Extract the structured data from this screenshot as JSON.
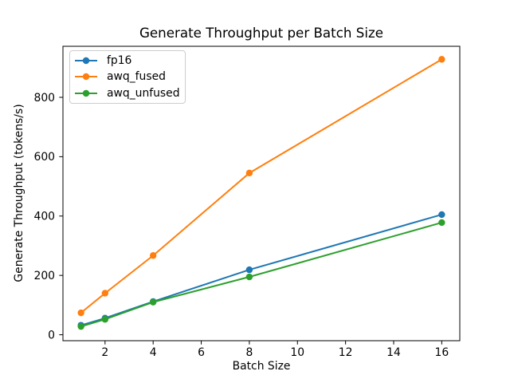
{
  "figure": {
    "background_color": "#ffffff",
    "spine_color": "#000000",
    "legend_border_color": "#cccccc"
  },
  "chart_data": {
    "type": "line",
    "title": "Generate Throughput per Batch Size",
    "xlabel": "Batch Size",
    "ylabel": "Generate Throughput (tokens/s)",
    "x": [
      1,
      2,
      4,
      8,
      16
    ],
    "series": [
      {
        "name": "fp16",
        "color": "#1f77b4",
        "values": [
          32,
          56,
          112,
          219,
          405
        ]
      },
      {
        "name": "awq_fused",
        "color": "#ff7f0e",
        "values": [
          74,
          140,
          267,
          545,
          928
        ]
      },
      {
        "name": "awq_unfused",
        "color": "#2ca02c",
        "values": [
          28,
          52,
          110,
          195,
          378
        ]
      }
    ],
    "xticks": [
      2,
      4,
      6,
      8,
      10,
      12,
      14,
      16
    ],
    "yticks": [
      0,
      200,
      400,
      600,
      800
    ],
    "xlim": [
      0.25,
      16.75
    ],
    "ylim": [
      -20,
      972
    ],
    "grid": false,
    "legend_position": "upper left",
    "marker": "o"
  }
}
